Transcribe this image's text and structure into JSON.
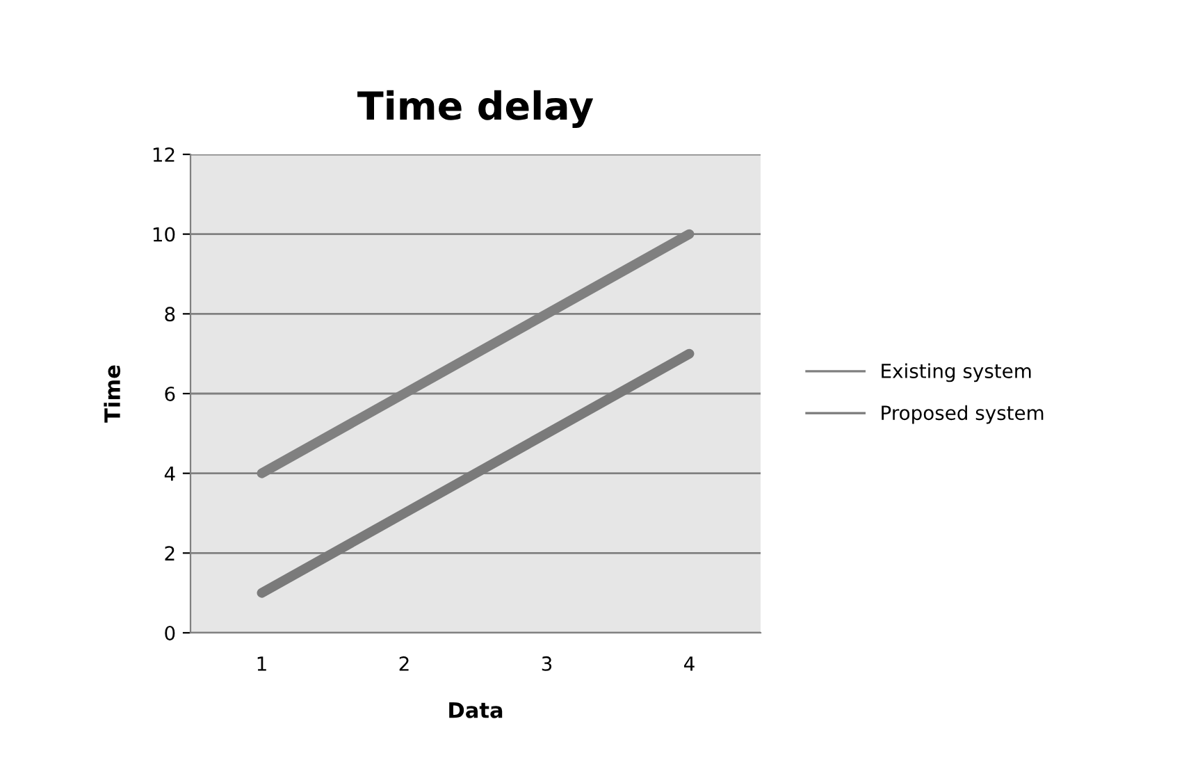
{
  "chart_data": {
    "type": "line",
    "title": "Time delay",
    "xlabel": "Data",
    "ylabel": "Time",
    "categories": [
      "1",
      "2",
      "3",
      "4"
    ],
    "series": [
      {
        "name": "Existing system",
        "color": "#808080",
        "values": [
          4,
          6,
          8,
          10
        ]
      },
      {
        "name": "Proposed system",
        "color": "#7a7a7a",
        "values": [
          1,
          3,
          5,
          7
        ]
      }
    ],
    "ylim": [
      0,
      12
    ],
    "yticks": [
      0,
      2,
      4,
      6,
      8,
      10,
      12
    ],
    "grid": "y",
    "legend": "right",
    "marker": "none",
    "line_style": "solid"
  }
}
